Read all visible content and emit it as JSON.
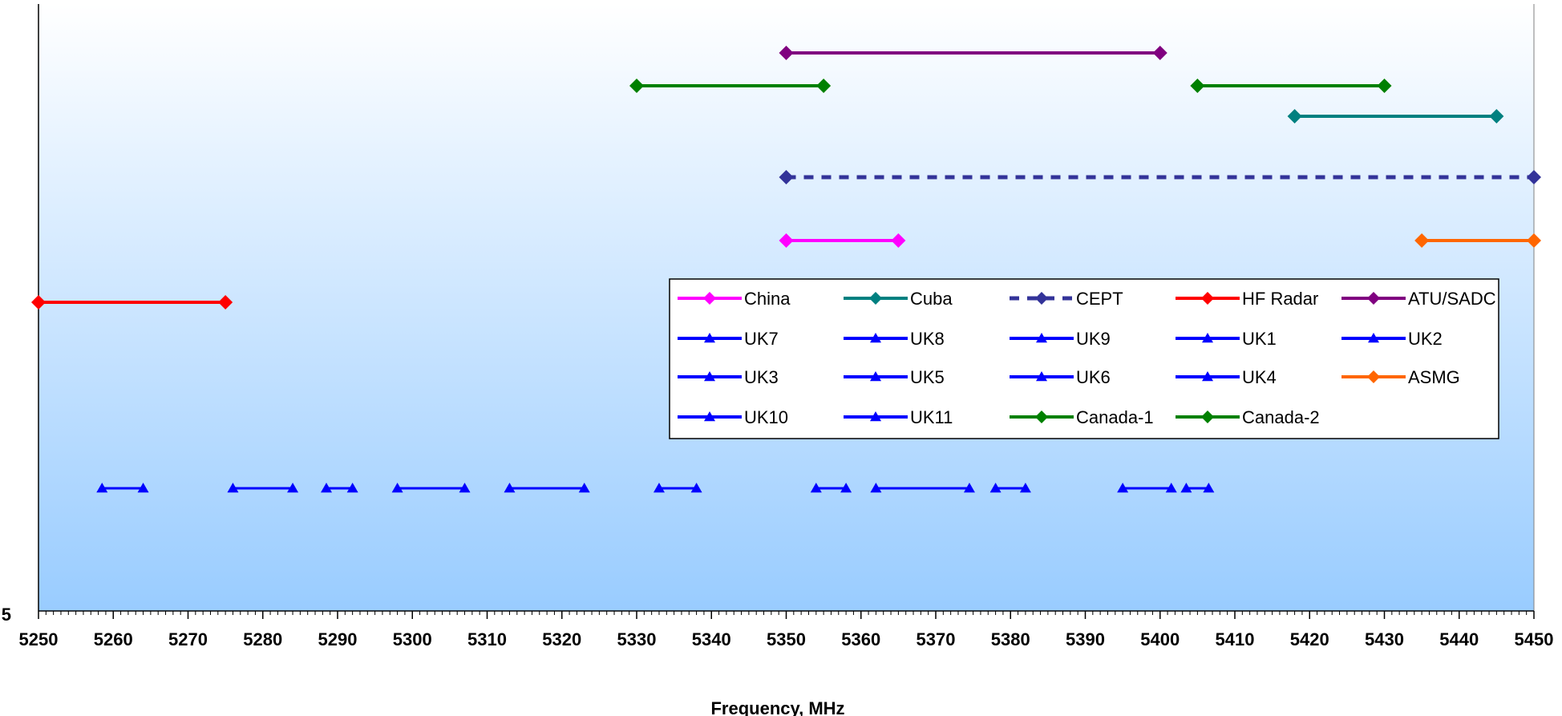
{
  "chart_data": {
    "type": "line",
    "title": "",
    "xlabel": "Frequency, MHz",
    "ylabel": "",
    "xlim": [
      5250,
      5450
    ],
    "x_ticks": [
      5250,
      5260,
      5270,
      5280,
      5290,
      5300,
      5310,
      5320,
      5330,
      5340,
      5350,
      5360,
      5370,
      5380,
      5390,
      5400,
      5410,
      5420,
      5430,
      5440,
      5450
    ],
    "y_tick_visible": "5",
    "grid": false,
    "legend_position": "center-right",
    "series": [
      {
        "name": "China",
        "color": "#ff00ff",
        "marker": "diamond",
        "style": "solid",
        "segments": [
          [
            5350,
            5365
          ]
        ]
      },
      {
        "name": "Cuba",
        "color": "#008080",
        "marker": "diamond",
        "style": "solid",
        "segments": [
          [
            5418,
            5445
          ]
        ]
      },
      {
        "name": "CEPT",
        "color": "#333399",
        "marker": "diamond",
        "style": "dashed",
        "segments": [
          [
            5350,
            5450
          ]
        ]
      },
      {
        "name": "HF Radar",
        "color": "#ff0000",
        "marker": "diamond",
        "style": "solid",
        "segments": [
          [
            5250,
            5275
          ]
        ]
      },
      {
        "name": "ATU/SADC",
        "color": "#800080",
        "marker": "diamond",
        "style": "solid",
        "segments": [
          [
            5350,
            5400
          ]
        ]
      },
      {
        "name": "UK7",
        "color": "#0000ff",
        "marker": "triangle",
        "style": "solid",
        "segments": [
          [
            5258.5,
            5264
          ]
        ]
      },
      {
        "name": "UK8",
        "color": "#0000ff",
        "marker": "triangle",
        "style": "solid",
        "segments": [
          [
            5276,
            5284
          ]
        ]
      },
      {
        "name": "UK9",
        "color": "#0000ff",
        "marker": "triangle",
        "style": "solid",
        "segments": [
          [
            5288.5,
            5292
          ]
        ]
      },
      {
        "name": "UK1",
        "color": "#0000ff",
        "marker": "triangle",
        "style": "solid",
        "segments": [
          [
            5298,
            5307
          ]
        ]
      },
      {
        "name": "UK2",
        "color": "#0000ff",
        "marker": "triangle",
        "style": "solid",
        "segments": [
          [
            5313,
            5323
          ]
        ]
      },
      {
        "name": "UK3",
        "color": "#0000ff",
        "marker": "triangle",
        "style": "solid",
        "segments": [
          [
            5333,
            5338
          ]
        ]
      },
      {
        "name": "UK5",
        "color": "#0000ff",
        "marker": "triangle",
        "style": "solid",
        "segments": [
          [
            5354,
            5358
          ]
        ]
      },
      {
        "name": "UK6",
        "color": "#0000ff",
        "marker": "triangle",
        "style": "solid",
        "segments": [
          [
            5362,
            5374.5
          ]
        ]
      },
      {
        "name": "UK4",
        "color": "#0000ff",
        "marker": "triangle",
        "style": "solid",
        "segments": [
          [
            5378,
            5382
          ]
        ]
      },
      {
        "name": "ASMG",
        "color": "#ff6600",
        "marker": "diamond",
        "style": "solid",
        "segments": [
          [
            5435,
            5450
          ]
        ]
      },
      {
        "name": "UK10",
        "color": "#0000ff",
        "marker": "triangle",
        "style": "solid",
        "segments": [
          [
            5395,
            5401.5
          ]
        ]
      },
      {
        "name": "UK11",
        "color": "#0000ff",
        "marker": "triangle",
        "style": "solid",
        "segments": [
          [
            5403.5,
            5406.5
          ]
        ]
      },
      {
        "name": "Canada-1",
        "color": "#008000",
        "marker": "diamond",
        "style": "solid",
        "segments": [
          [
            5330,
            5355
          ]
        ]
      },
      {
        "name": "Canada-2",
        "color": "#008000",
        "marker": "diamond",
        "style": "solid",
        "segments": [
          [
            5405,
            5430
          ]
        ]
      }
    ]
  }
}
